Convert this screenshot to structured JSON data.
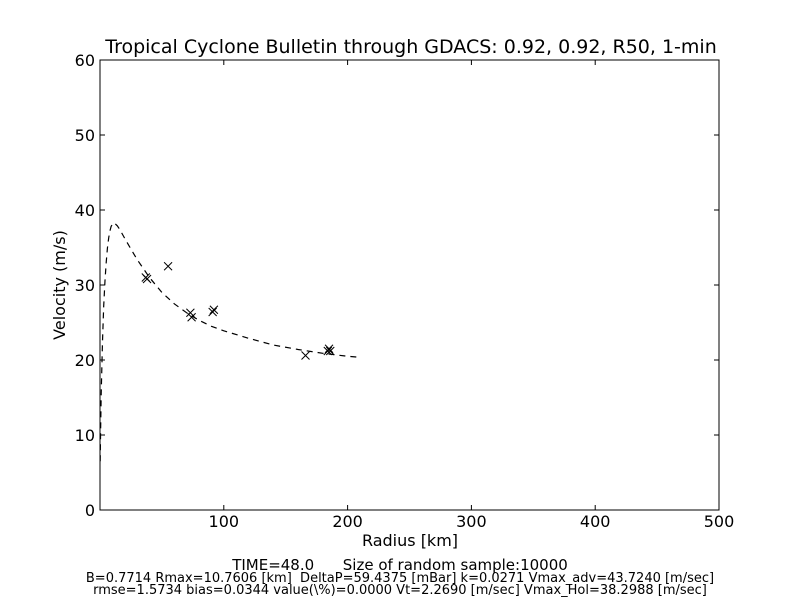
{
  "chart_data": {
    "type": "scatter",
    "title": "Tropical Cyclone Bulletin through GDACS: 0.92, 0.92, R50, 1-min",
    "xlabel": "Radius [km]",
    "ylabel": "Velocity (m/s)",
    "xlim": [
      0,
      500
    ],
    "ylim": [
      0,
      60
    ],
    "xticks": [
      100,
      200,
      300,
      400,
      500
    ],
    "xtick_labels": [
      "100",
      "200",
      "300",
      "400",
      "500"
    ],
    "yticks": [
      0,
      10,
      20,
      30,
      40,
      50,
      60
    ],
    "ytick_labels": [
      "0",
      "10",
      "20",
      "30",
      "40",
      "50",
      "60"
    ],
    "grid": false,
    "series": [
      {
        "style": "x-markers",
        "color": "#000000",
        "x": [
          37,
          38,
          55,
          73,
          74,
          91,
          92,
          166,
          184,
          185,
          186
        ],
        "y": [
          31.0,
          30.8,
          32.5,
          26.3,
          25.7,
          26.4,
          26.7,
          20.6,
          21.2,
          21.5,
          21.2
        ]
      },
      {
        "style": "dashed-line",
        "color": "#000000",
        "x": [
          0.2,
          0.5,
          1,
          2,
          3,
          4,
          5,
          6,
          7,
          8,
          9,
          10,
          10.76,
          12,
          14,
          16,
          20,
          25,
          30,
          40,
          50,
          60,
          70,
          80,
          90,
          100,
          120,
          140,
          160,
          180,
          200,
          207
        ],
        "y": [
          6.5,
          10.5,
          15.5,
          22.5,
          27.2,
          30.6,
          33.0,
          34.9,
          36.3,
          37.2,
          37.8,
          38.1,
          38.3,
          38.2,
          37.9,
          37.4,
          36.2,
          34.8,
          33.4,
          31.0,
          29.0,
          27.5,
          26.3,
          25.3,
          24.5,
          23.9,
          22.9,
          22.0,
          21.4,
          20.9,
          20.5,
          20.4
        ]
      }
    ],
    "annotations": [
      "TIME=48.0      Size of random sample:10000",
      "B=0.7714 Rmax=10.7606 [km]  DeltaP=59.4375 [mBar] k=0.0271 Vmax_adv=43.7240 [m/sec]",
      "rmse=1.5734 bias=0.0344 value(\\%)=0.0000 Vt=2.2690 [m/sec] Vmax_Hol=38.2988 [m/sec]"
    ]
  }
}
